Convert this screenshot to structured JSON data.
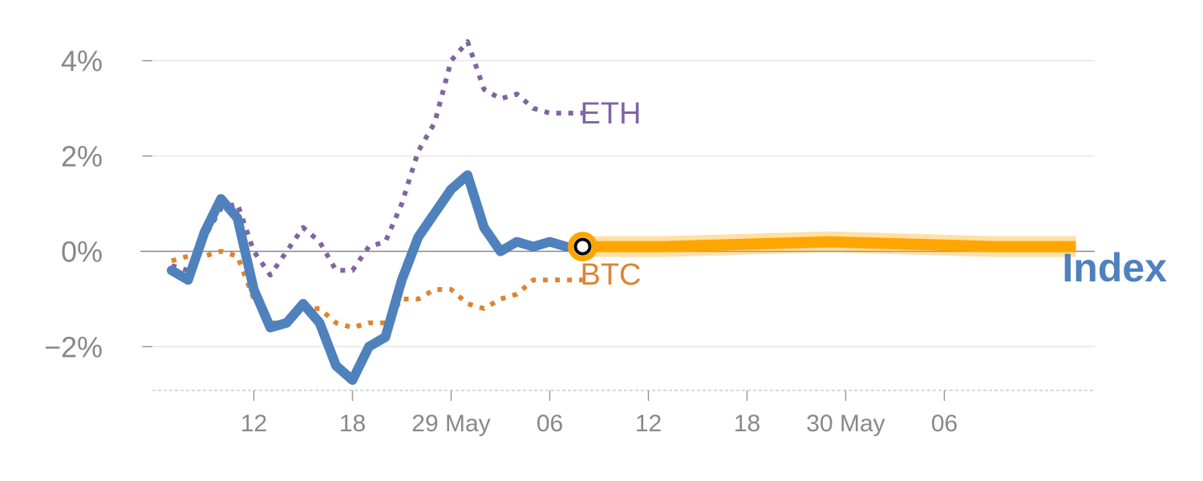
{
  "chart_data": {
    "type": "line",
    "title": "",
    "xlabel": "",
    "ylabel": "",
    "ylim": [
      -2.8,
      4.6
    ],
    "y_ticks": [
      {
        "value": 4,
        "label": "4%"
      },
      {
        "value": 2,
        "label": "2%"
      },
      {
        "value": 0,
        "label": "0%"
      },
      {
        "value": -2,
        "label": "−2%"
      }
    ],
    "x_range": [
      0,
      56
    ],
    "x_ticks": [
      {
        "x": 5,
        "label": "12"
      },
      {
        "x": 11,
        "label": "18"
      },
      {
        "x": 17,
        "label": "29 May"
      },
      {
        "x": 23,
        "label": "06"
      },
      {
        "x": 29,
        "label": "12"
      },
      {
        "x": 35,
        "label": "18"
      },
      {
        "x": 41,
        "label": "30 May"
      },
      {
        "x": 47,
        "label": "06"
      }
    ],
    "grid": true,
    "series": [
      {
        "name": "ETH",
        "color": "#8064a2",
        "style": "dotted",
        "x": [
          0,
          1,
          2,
          3,
          4,
          5,
          6,
          7,
          8,
          9,
          10,
          11,
          12,
          13,
          14,
          15,
          16,
          17,
          18,
          19,
          20,
          21,
          22,
          23,
          24,
          25
        ],
        "y": [
          -0.3,
          -0.4,
          0.3,
          0.9,
          1.0,
          0.0,
          -0.5,
          0.0,
          0.5,
          0.2,
          -0.4,
          -0.4,
          0.1,
          0.2,
          1.0,
          2.1,
          2.7,
          4.0,
          4.4,
          3.4,
          3.2,
          3.3,
          3.0,
          2.9,
          2.9,
          2.9
        ]
      },
      {
        "name": "BTC",
        "color": "#dd8433",
        "style": "dotted",
        "x": [
          0,
          1,
          2,
          3,
          4,
          5,
          6,
          7,
          8,
          9,
          10,
          11,
          12,
          13,
          14,
          15,
          16,
          17,
          18,
          19,
          20,
          21,
          22,
          23,
          24,
          25
        ],
        "y": [
          -0.2,
          -0.1,
          -0.1,
          0.0,
          -0.1,
          -1.0,
          -1.5,
          -1.5,
          -1.2,
          -1.2,
          -1.5,
          -1.6,
          -1.5,
          -1.5,
          -1.0,
          -1.0,
          -0.8,
          -0.8,
          -1.1,
          -1.2,
          -1.0,
          -0.9,
          -0.6,
          -0.6,
          -0.6,
          -0.6
        ]
      },
      {
        "name": "Index",
        "color": "#4f81bd",
        "style": "solid",
        "x": [
          0,
          1,
          2,
          3,
          4,
          5,
          6,
          7,
          8,
          9,
          10,
          11,
          12,
          13,
          14,
          15,
          16,
          17,
          18,
          19,
          20,
          21,
          22,
          23,
          24
        ],
        "y": [
          -0.4,
          -0.6,
          0.4,
          1.1,
          0.7,
          -0.8,
          -1.6,
          -1.5,
          -1.1,
          -1.5,
          -2.4,
          -2.7,
          -2.0,
          -1.8,
          -0.6,
          0.3,
          0.8,
          1.3,
          1.6,
          0.5,
          0.0,
          0.2,
          0.1,
          0.2,
          0.1
        ]
      }
    ],
    "forecast": {
      "color": "#ffa500",
      "x": [
        25,
        30,
        35,
        40,
        45,
        50,
        55
      ],
      "y": [
        0.1,
        0.1,
        0.15,
        0.2,
        0.15,
        0.1,
        0.1
      ]
    },
    "marker": {
      "x": 25,
      "y": 0.1,
      "fill": "#ffffff",
      "stroke": "#000000",
      "ring": "#ffa500"
    },
    "labels": [
      {
        "text": "ETH",
        "series": "ETH"
      },
      {
        "text": "BTC",
        "series": "BTC"
      },
      {
        "text": "Index",
        "series": "Index"
      }
    ],
    "colors": {
      "axis_text": "#888888",
      "grid": "#e6e6e6",
      "zero_line": "#888888"
    }
  }
}
